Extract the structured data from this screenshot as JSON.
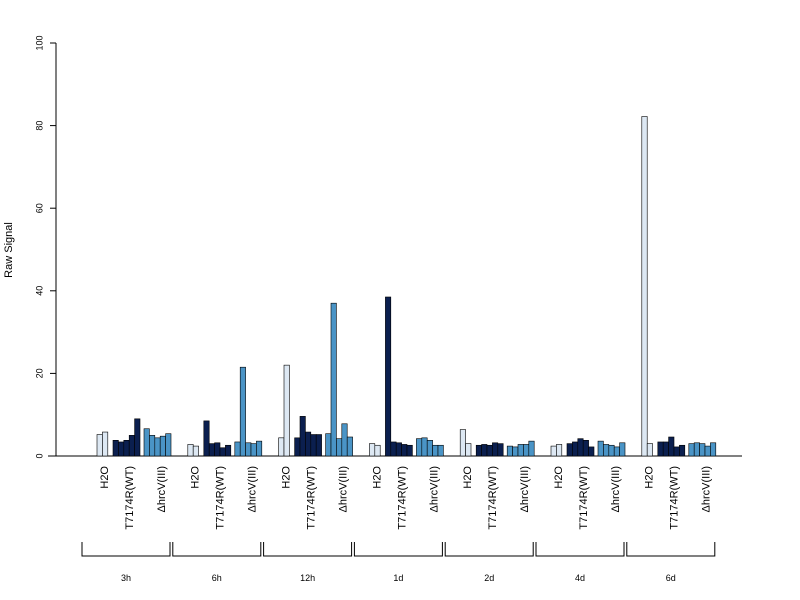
{
  "chart_data": {
    "type": "bar",
    "ylabel": "Raw Signal",
    "ylim": [
      0,
      100
    ],
    "yticks": [
      0,
      20,
      40,
      60,
      80,
      100
    ],
    "colors": {
      "H2O": "#dde8f3",
      "T7174R(WT)": "#0b1f4f",
      "ΔhrcV(III)": "#4a94c6"
    },
    "groups": [
      {
        "time": "3h",
        "conditions": [
          {
            "name": "H2O",
            "values": [
              5.2,
              5.8
            ]
          },
          {
            "name": "T7174R(WT)",
            "values": [
              3.8,
              3.4,
              3.8,
              5.0,
              9.0
            ]
          },
          {
            "name": "ΔhrcV(III)",
            "values": [
              6.6,
              5.0,
              4.4,
              4.8,
              5.4
            ]
          }
        ]
      },
      {
        "time": "6h",
        "conditions": [
          {
            "name": "H2O",
            "values": [
              2.8,
              2.4
            ]
          },
          {
            "name": "T7174R(WT)",
            "values": [
              8.5,
              3.0,
              3.2,
              2.0,
              2.6
            ]
          },
          {
            "name": "ΔhrcV(III)",
            "values": [
              3.4,
              21.5,
              3.2,
              3.0,
              3.6
            ]
          }
        ]
      },
      {
        "time": "12h",
        "conditions": [
          {
            "name": "H2O",
            "values": [
              4.4,
              22.0
            ]
          },
          {
            "name": "T7174R(WT)",
            "values": [
              4.4,
              9.6,
              5.8,
              5.2,
              5.2
            ]
          },
          {
            "name": "ΔhrcV(III)",
            "values": [
              5.4,
              37.0,
              4.2,
              7.8,
              4.6
            ]
          }
        ]
      },
      {
        "time": "1d",
        "conditions": [
          {
            "name": "H2O",
            "values": [
              3.0,
              2.6
            ]
          },
          {
            "name": "T7174R(WT)",
            "values": [
              38.5,
              3.4,
              3.2,
              2.8,
              2.6
            ]
          },
          {
            "name": "ΔhrcV(III)",
            "values": [
              4.2,
              4.4,
              3.8,
              2.6,
              2.6
            ]
          }
        ]
      },
      {
        "time": "2d",
        "conditions": [
          {
            "name": "H2O",
            "values": [
              6.4,
              3.0
            ]
          },
          {
            "name": "T7174R(WT)",
            "values": [
              2.6,
              2.8,
              2.6,
              3.2,
              3.0
            ]
          },
          {
            "name": "ΔhrcV(III)",
            "values": [
              2.4,
              2.2,
              2.8,
              2.8,
              3.6
            ]
          }
        ]
      },
      {
        "time": "4d",
        "conditions": [
          {
            "name": "H2O",
            "values": [
              2.4,
              2.8
            ]
          },
          {
            "name": "T7174R(WT)",
            "values": [
              3.0,
              3.4,
              4.2,
              3.8,
              2.2
            ]
          },
          {
            "name": "ΔhrcV(III)",
            "values": [
              3.6,
              2.8,
              2.6,
              2.2,
              3.2
            ]
          }
        ]
      },
      {
        "time": "6d",
        "conditions": [
          {
            "name": "H2O",
            "values": [
              82.2,
              3.0
            ]
          },
          {
            "name": "T7174R(WT)",
            "values": [
              3.4,
              3.4,
              4.6,
              2.2,
              2.6
            ]
          },
          {
            "name": "ΔhrcV(III)",
            "values": [
              3.0,
              3.2,
              3.0,
              2.4,
              3.2
            ]
          }
        ]
      }
    ]
  }
}
